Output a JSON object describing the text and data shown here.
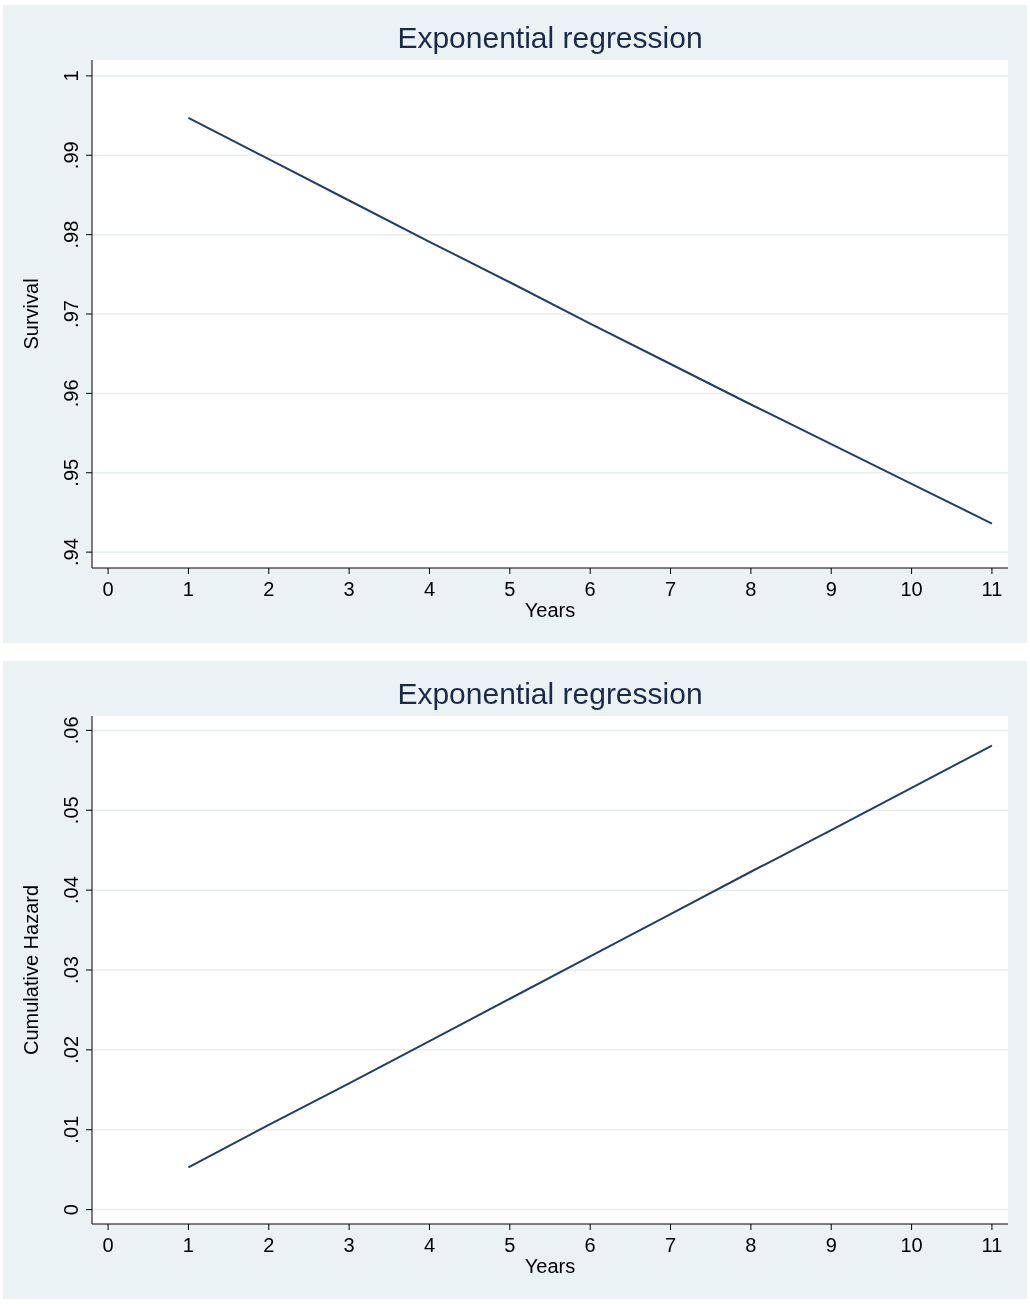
{
  "chart_data": [
    {
      "type": "line",
      "title": "Exponential regression",
      "xlabel": "Years",
      "ylabel": "Survival",
      "x": [
        1,
        2,
        3,
        4,
        5,
        6,
        7,
        8,
        9,
        10,
        11
      ],
      "series": [
        {
          "color": "#1f3f66",
          "values": [
            0.9947,
            0.9895,
            0.9843,
            0.9791,
            0.974,
            0.9688,
            0.9637,
            0.9586,
            0.9536,
            0.9486,
            0.9436
          ]
        }
      ],
      "xlim": [
        -0.2,
        11.2
      ],
      "xticks": [
        0,
        1,
        2,
        3,
        4,
        5,
        6,
        7,
        8,
        9,
        10,
        11
      ],
      "ylim": [
        0.938,
        1.002
      ],
      "yticks": [
        {
          "value": 0.94,
          "label": ".94"
        },
        {
          "value": 0.95,
          "label": ".95"
        },
        {
          "value": 0.96,
          "label": ".96"
        },
        {
          "value": 0.97,
          "label": ".97"
        },
        {
          "value": 0.98,
          "label": ".98"
        },
        {
          "value": 0.99,
          "label": ".99"
        },
        1
      ],
      "grid": "y",
      "marker": "none",
      "line_style": "solid"
    },
    {
      "type": "line",
      "title": "Exponential regression",
      "xlabel": "Years",
      "ylabel": "Cumulative Hazard",
      "x": [
        1,
        2,
        3,
        4,
        5,
        6,
        7,
        8,
        9,
        10,
        11
      ],
      "series": [
        {
          "color": "#1f3f66",
          "values": [
            0.0053,
            0.0106,
            0.0158,
            0.0211,
            0.0264,
            0.0317,
            0.037,
            0.0423,
            0.0475,
            0.0528,
            0.0581
          ]
        }
      ],
      "xlim": [
        -0.2,
        11.2
      ],
      "xticks": [
        0,
        1,
        2,
        3,
        4,
        5,
        6,
        7,
        8,
        9,
        10,
        11
      ],
      "ylim": [
        -0.0018,
        0.0618
      ],
      "yticks": [
        0,
        {
          "value": 0.01,
          "label": ".01"
        },
        {
          "value": 0.02,
          "label": ".02"
        },
        {
          "value": 0.03,
          "label": ".03"
        },
        {
          "value": 0.04,
          "label": ".04"
        },
        {
          "value": 0.05,
          "label": ".05"
        },
        {
          "value": 0.06,
          "label": ".06"
        }
      ],
      "grid": "y",
      "marker": "none",
      "line_style": "solid"
    }
  ]
}
